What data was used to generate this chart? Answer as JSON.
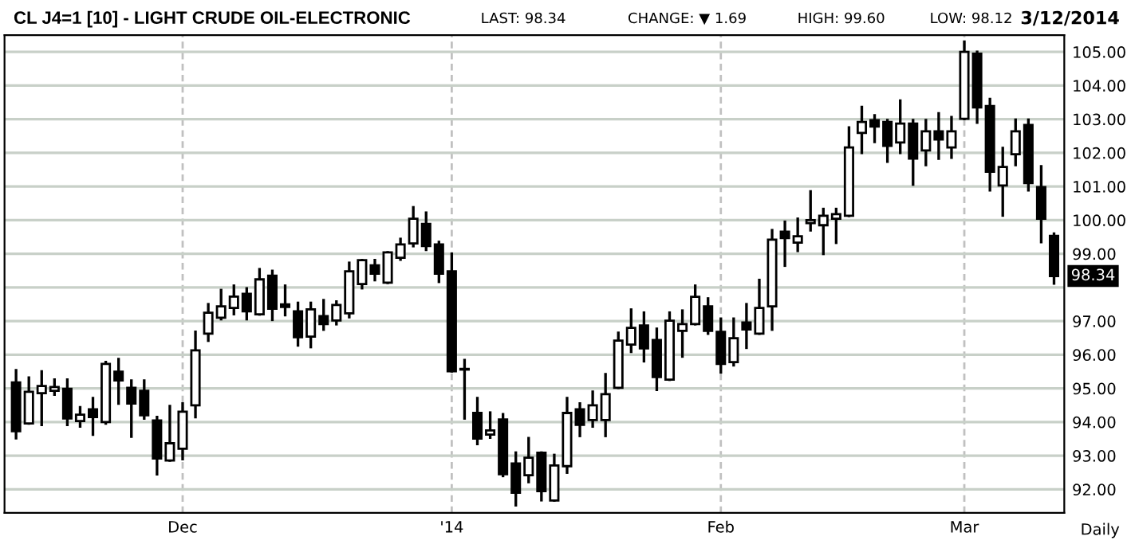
{
  "chart_data": {
    "type": "candlestick",
    "title": "CL J4=1 [10] - LIGHT CRUDE OIL-ELECTRONIC",
    "annotations": [
      "LAST: 98.34",
      "CHANGE: ▼ 1.69",
      "HIGH: 99.60",
      "LOW: 98.12",
      "3/12/2014",
      "Daily",
      {
        "text": "98.34",
        "y": 98.34
      }
    ],
    "categories": [
      null,
      null,
      null,
      null,
      null,
      null,
      null,
      null,
      null,
      null,
      null,
      null,
      null,
      "Dec",
      null,
      null,
      null,
      null,
      null,
      null,
      null,
      null,
      null,
      null,
      null,
      null,
      null,
      null,
      null,
      null,
      null,
      null,
      null,
      null,
      "'14",
      null,
      null,
      null,
      null,
      null,
      null,
      null,
      null,
      null,
      null,
      null,
      null,
      null,
      null,
      null,
      null,
      null,
      null,
      null,
      null,
      "Feb",
      null,
      null,
      null,
      null,
      null,
      null,
      null,
      null,
      null,
      null,
      null,
      null,
      null,
      null,
      null,
      null,
      null,
      null,
      "Mar",
      null,
      null,
      null,
      null,
      null,
      null,
      null
    ],
    "ohlc": [
      [
        95.18,
        95.54,
        93.52,
        93.73
      ],
      [
        93.96,
        95.32,
        93.96,
        94.9
      ],
      [
        94.86,
        95.5,
        93.92,
        95.07
      ],
      [
        94.93,
        95.26,
        94.82,
        95.04
      ],
      [
        94.99,
        95.26,
        93.92,
        94.11
      ],
      [
        94.03,
        94.44,
        93.87,
        94.22
      ],
      [
        94.38,
        94.71,
        93.63,
        94.15
      ],
      [
        94.0,
        95.78,
        93.96,
        95.73
      ],
      [
        95.5,
        95.87,
        94.55,
        95.24
      ],
      [
        95.02,
        95.23,
        93.57,
        94.55
      ],
      [
        94.93,
        95.23,
        94.11,
        94.2
      ],
      [
        94.05,
        94.15,
        92.45,
        92.92
      ],
      [
        92.86,
        94.47,
        92.86,
        93.37
      ],
      [
        93.21,
        94.55,
        92.9,
        94.31
      ],
      [
        94.5,
        96.68,
        94.15,
        96.13
      ],
      [
        96.63,
        97.5,
        96.42,
        97.25
      ],
      [
        97.1,
        97.92,
        97.06,
        97.44
      ],
      [
        97.39,
        98.05,
        97.21,
        97.73
      ],
      [
        97.81,
        97.97,
        97.06,
        97.29
      ],
      [
        97.2,
        98.54,
        97.2,
        98.24
      ],
      [
        98.35,
        98.49,
        97.04,
        97.37
      ],
      [
        97.5,
        98.05,
        97.18,
        97.42
      ],
      [
        97.29,
        97.54,
        96.28,
        96.52
      ],
      [
        96.54,
        97.54,
        96.23,
        97.35
      ],
      [
        97.15,
        97.62,
        96.75,
        96.91
      ],
      [
        97.02,
        97.58,
        96.91,
        97.48
      ],
      [
        97.23,
        98.73,
        97.12,
        98.48
      ],
      [
        98.1,
        98.81,
        97.98,
        98.81
      ],
      [
        98.66,
        98.81,
        98.22,
        98.41
      ],
      [
        98.14,
        99.04,
        98.14,
        99.04
      ],
      [
        98.88,
        99.44,
        98.83,
        99.28
      ],
      [
        99.31,
        100.38,
        99.23,
        100.04
      ],
      [
        99.89,
        100.22,
        99.12,
        99.23
      ],
      [
        99.28,
        99.35,
        98.17,
        98.41
      ],
      [
        98.48,
        99.0,
        95.51,
        95.51
      ],
      [
        95.56,
        95.84,
        94.11,
        95.56
      ],
      [
        94.27,
        94.71,
        93.35,
        93.51
      ],
      [
        93.63,
        94.28,
        93.54,
        93.75
      ],
      [
        94.08,
        94.23,
        92.4,
        92.45
      ],
      [
        92.77,
        93.09,
        91.53,
        91.9
      ],
      [
        92.42,
        93.52,
        92.22,
        92.94
      ],
      [
        93.09,
        93.09,
        91.68,
        91.95
      ],
      [
        91.67,
        93.02,
        91.67,
        92.71
      ],
      [
        92.69,
        94.71,
        92.5,
        94.27
      ],
      [
        94.38,
        94.55,
        93.59,
        93.92
      ],
      [
        94.06,
        94.9,
        93.87,
        94.5
      ],
      [
        94.06,
        95.42,
        93.59,
        94.83
      ],
      [
        95.02,
        96.65,
        95.02,
        96.42
      ],
      [
        96.3,
        97.34,
        96.09,
        96.8
      ],
      [
        96.87,
        97.25,
        95.81,
        96.19
      ],
      [
        96.44,
        96.77,
        94.96,
        95.34
      ],
      [
        95.26,
        97.25,
        95.26,
        97.01
      ],
      [
        96.71,
        97.31,
        95.95,
        96.91
      ],
      [
        96.91,
        98.05,
        96.91,
        97.72
      ],
      [
        97.44,
        97.67,
        96.63,
        96.71
      ],
      [
        96.68,
        97.07,
        95.48,
        95.73
      ],
      [
        95.78,
        97.07,
        95.69,
        96.49
      ],
      [
        96.96,
        97.5,
        96.21,
        96.75
      ],
      [
        96.63,
        98.22,
        96.63,
        97.39
      ],
      [
        97.44,
        99.7,
        96.75,
        99.42
      ],
      [
        99.66,
        99.95,
        98.65,
        99.47
      ],
      [
        99.33,
        100.04,
        99.09,
        99.52
      ],
      [
        99.91,
        100.85,
        99.7,
        100.0
      ],
      [
        99.85,
        100.33,
        99.0,
        100.13
      ],
      [
        100.04,
        100.33,
        99.33,
        100.18
      ],
      [
        100.13,
        102.75,
        100.13,
        102.16
      ],
      [
        102.59,
        103.36,
        102.0,
        102.92
      ],
      [
        102.97,
        103.11,
        102.33,
        102.78
      ],
      [
        102.92,
        102.97,
        101.74,
        102.21
      ],
      [
        102.31,
        103.55,
        102.0,
        102.87
      ],
      [
        102.87,
        102.97,
        101.06,
        101.83
      ],
      [
        102.07,
        102.97,
        101.64,
        102.64
      ],
      [
        102.64,
        103.17,
        101.83,
        102.4
      ],
      [
        102.16,
        103.06,
        101.86,
        102.64
      ],
      [
        103.01,
        105.3,
        103.01,
        105.0
      ],
      [
        104.95,
        105.0,
        102.9,
        103.35
      ],
      [
        103.39,
        103.6,
        100.89,
        101.44
      ],
      [
        101.03,
        102.14,
        100.14,
        101.58
      ],
      [
        101.96,
        102.98,
        101.64,
        102.64
      ],
      [
        102.83,
        102.98,
        100.89,
        101.1
      ],
      [
        100.98,
        101.6,
        99.35,
        100.04
      ],
      [
        99.53,
        99.6,
        98.12,
        98.34
      ]
    ],
    "ylim": [
      91.3,
      105.5
    ],
    "yticks": [
      {
        "value": 92,
        "label": "92.00"
      },
      {
        "value": 93,
        "label": "93.00"
      },
      {
        "value": 94,
        "label": "94.00"
      },
      {
        "value": 95,
        "label": "95.00"
      },
      {
        "value": 96,
        "label": "96.00"
      },
      {
        "value": 97,
        "label": "97.00"
      },
      {
        "value": 98,
        "label": null
      },
      {
        "value": 99,
        "label": "99.00"
      },
      {
        "value": 100,
        "label": "100.00"
      },
      {
        "value": 101,
        "label": "101.00"
      },
      {
        "value": 102,
        "label": "102.00"
      },
      {
        "value": 103,
        "label": "103.00"
      },
      {
        "value": 104,
        "label": "104.00"
      },
      {
        "value": 105,
        "label": "105.00"
      }
    ],
    "grid": true
  }
}
